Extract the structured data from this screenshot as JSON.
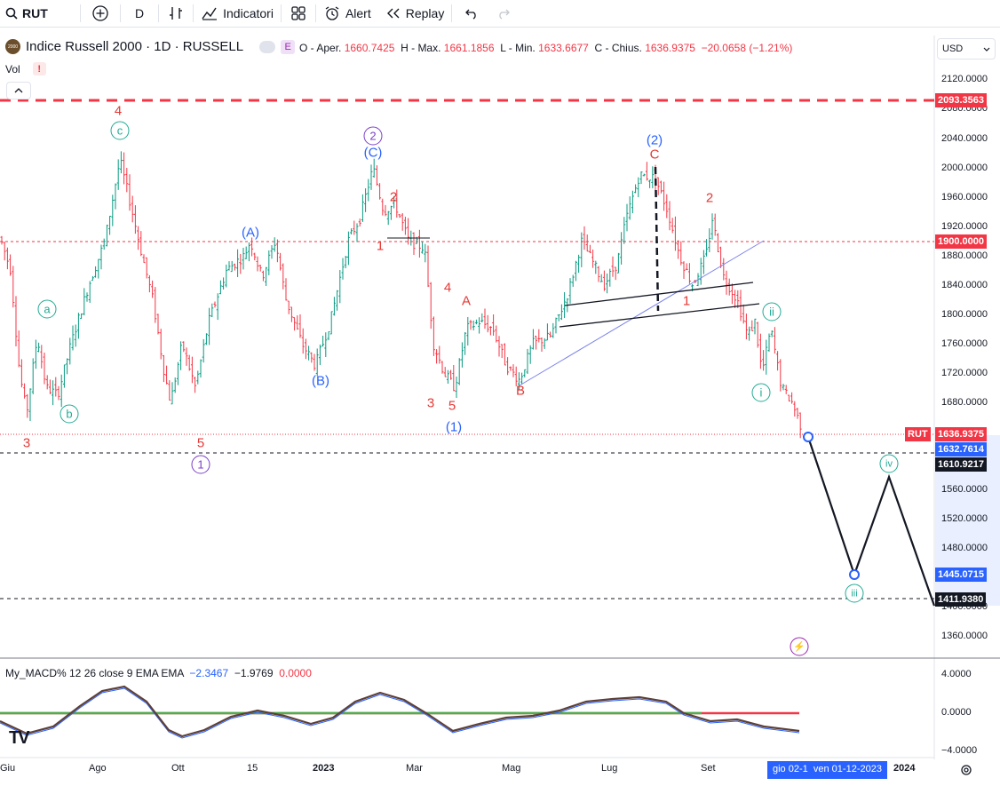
{
  "toolbar": {
    "symbol": "RUT",
    "interval": "D",
    "indicators_label": "Indicatori",
    "alert_label": "Alert",
    "replay_label": "Replay"
  },
  "legend": {
    "title": "Indice Russell 2000 · 1D · RUSSELL",
    "badge": "E",
    "o_label": "O - Aper.",
    "o_value": "1660.7425",
    "h_label": "H - Max.",
    "h_value": "1661.1856",
    "l_label": "L - Min.",
    "l_value": "1633.6677",
    "c_label": "C - Chius.",
    "c_value": "1636.9375",
    "change": "−20.0658 (−1.21%)",
    "vol_label": "Vol",
    "vol_warning": "!"
  },
  "currency": "USD",
  "colors": {
    "up": "#089981",
    "down": "#f23645",
    "blue_wave": "#2962ff",
    "purple_wave": "#7b3fc9",
    "green_wave": "#22ab94",
    "red_wave": "#e53935"
  },
  "price_axis": {
    "ticks": [
      "2120.0000",
      "2080.0000",
      "2040.0000",
      "2000.0000",
      "1960.0000",
      "1920.0000",
      "1880.0000",
      "1840.0000",
      "1800.0000",
      "1760.0000",
      "1720.0000",
      "1680.0000",
      "1560.0000",
      "1520.0000",
      "1480.0000",
      "1400.0000",
      "1360.0000"
    ]
  },
  "price_tags": {
    "top_line": "2093.3563",
    "resistance": "1900.0000",
    "rut_label": "RUT",
    "rut_price": "1636.9375",
    "level1": "1632.7614",
    "level2": "1610.9217",
    "level3": "1445.0715",
    "level4": "1411.9380"
  },
  "time_axis": {
    "labels": [
      "Giu",
      "Ago",
      "Ott",
      "15",
      "2023",
      "Mar",
      "Mag",
      "Lug",
      "Set",
      "2024"
    ],
    "crosshair_label": "gio 02-1",
    "crosshair_date": "ven 01-12-2023"
  },
  "macd": {
    "title": "My_MACD% 12 26 close 9 EMA EMA",
    "v1": "−2.3467",
    "v2": "−1.9769",
    "v3": "0.0000",
    "ticks": [
      "4.0000",
      "0.0000",
      "−4.0000"
    ]
  },
  "wave_labels": {
    "red_4": "4",
    "red_3a": "3",
    "red_5a": "5",
    "red_2a": "2",
    "red_1a": "1",
    "red_4b": "4",
    "red_A": "A",
    "red_3b": "3",
    "red_5b": "5",
    "red_B": "B",
    "red_C": "C",
    "red_1b": "1",
    "red_2b": "2",
    "blue_A": "(A)",
    "blue_B": "(B)",
    "blue_C": "(C)",
    "blue_1": "(1)",
    "blue_2": "(2)",
    "purple_1": "1",
    "purple_2": "2",
    "green_a": "a",
    "green_b": "b",
    "green_c": "c",
    "green_i": "i",
    "green_ii": "ii",
    "green_iii": "iii",
    "green_iv": "iv"
  }
}
